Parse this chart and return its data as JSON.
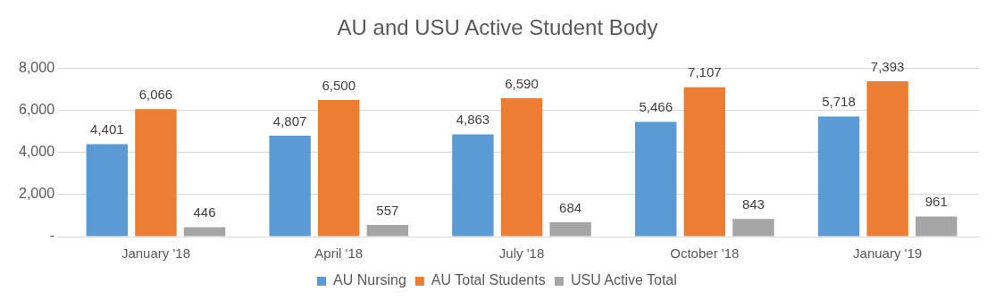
{
  "chart_data": {
    "type": "bar",
    "title": "AU and USU Active Student Body",
    "categories": [
      "January '18",
      "April '18",
      "July '18",
      "October '18",
      "January '19"
    ],
    "series": [
      {
        "name": "AU Nursing",
        "color": "#5b9bd5",
        "values": [
          4401,
          4807,
          4863,
          5466,
          5718
        ],
        "value_labels": [
          "4,401",
          "4,807",
          "4,863",
          "5,466",
          "5,718"
        ]
      },
      {
        "name": "AU Total Students",
        "color": "#ed7d31",
        "values": [
          6066,
          6500,
          6590,
          7107,
          7393
        ],
        "value_labels": [
          "6,066",
          "6,500",
          "6,590",
          "7,107",
          "7,393"
        ]
      },
      {
        "name": "USU Active Total",
        "color": "#a5a5a5",
        "values": [
          446,
          557,
          684,
          843,
          961
        ],
        "value_labels": [
          "446",
          "557",
          "684",
          "843",
          "961"
        ]
      }
    ],
    "ylim": [
      0,
      8000
    ],
    "yticks": [
      {
        "value": 0,
        "label": "-"
      },
      {
        "value": 2000,
        "label": "2,000"
      },
      {
        "value": 4000,
        "label": "4,000"
      },
      {
        "value": 6000,
        "label": "6,000"
      },
      {
        "value": 8000,
        "label": "8,000"
      }
    ],
    "grid": "y",
    "legend": "bottom"
  }
}
